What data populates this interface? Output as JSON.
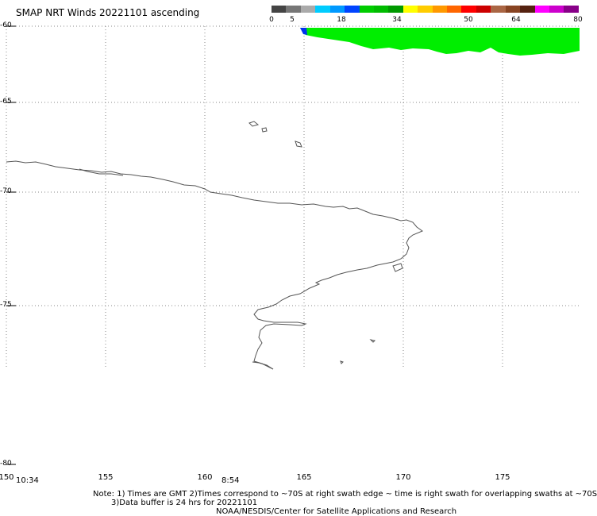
{
  "title": "SMAP NRT Winds 20221101 ascending",
  "colorbar": {
    "tick_labels": [
      "0",
      "5",
      "18",
      "34",
      "50",
      "64",
      "80"
    ],
    "segments": [
      {
        "color": "#444444"
      },
      {
        "color": "#777777"
      },
      {
        "color": "#aaaaaa"
      },
      {
        "color": "#00ccff"
      },
      {
        "color": "#0099ff"
      },
      {
        "color": "#0044ff"
      },
      {
        "color": "#00cc00"
      },
      {
        "color": "#00bb00"
      },
      {
        "color": "#009900"
      },
      {
        "color": "#ffff00"
      },
      {
        "color": "#ffcc00"
      },
      {
        "color": "#ff9900"
      },
      {
        "color": "#ff6600"
      },
      {
        "color": "#ff0000"
      },
      {
        "color": "#cc0000"
      },
      {
        "color": "#aa6644"
      },
      {
        "color": "#884422"
      },
      {
        "color": "#552211"
      },
      {
        "color": "#ff00ff"
      },
      {
        "color": "#cc00cc"
      },
      {
        "color": "#880088"
      }
    ]
  },
  "map": {
    "lat_labels": [
      "-60",
      "-65",
      "-70",
      "-75",
      "-80"
    ],
    "lon_labels": [
      "150",
      "155",
      "160",
      "165",
      "170",
      "175"
    ],
    "swath_color": "#00ee00",
    "coast_color": "#555555"
  },
  "times": [
    "10:34",
    "8:54"
  ],
  "notes": {
    "line1": "Note: 1) Times are GMT 2)Times correspond to ~70S at right swath edge ~ time is right swath for overlapping swaths at ~70S",
    "line2": "3)Data buffer is 24 hrs for 20221101",
    "line3": "NOAA/NESDIS/Center for Satellite Applications and Research"
  }
}
